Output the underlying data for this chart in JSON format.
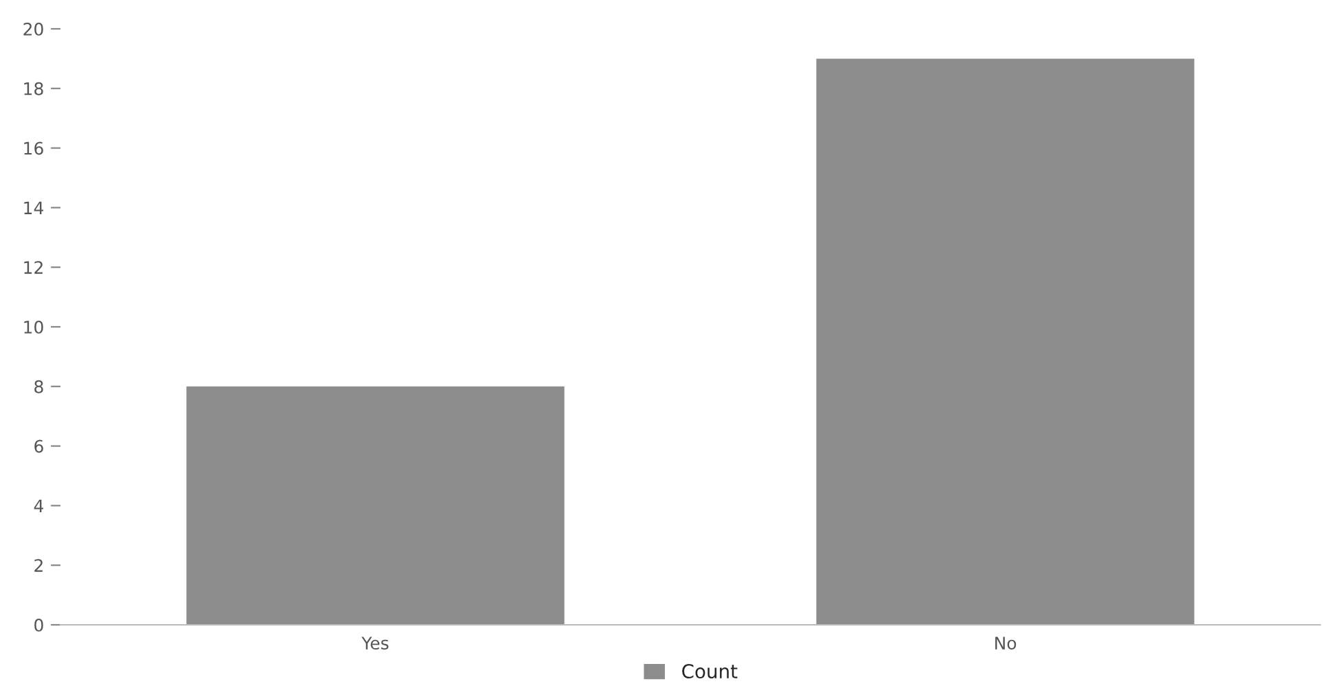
{
  "chart_data": {
    "type": "bar",
    "categories": [
      "Yes",
      "No"
    ],
    "series": [
      {
        "name": "Count",
        "color": "#8c8c8c",
        "values": [
          8,
          19
        ]
      }
    ],
    "ylim": [
      0,
      20
    ],
    "yticks": [
      0,
      2,
      4,
      6,
      8,
      10,
      12,
      14,
      16,
      18,
      20
    ],
    "grid": false,
    "legend": "bottom"
  }
}
